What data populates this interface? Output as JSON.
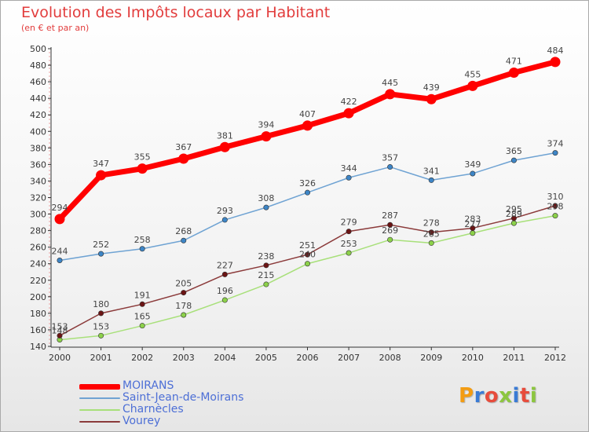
{
  "header": {
    "title": "Evolution des Impôts locaux par Habitant",
    "subtitle": "(en € et par an)"
  },
  "logo": {
    "text": "Proxiti",
    "letter_colors": [
      "#f39c12",
      "#3a7bd5",
      "#e74c3c",
      "#8cc63f",
      "#3a7bd5",
      "#e74c3c",
      "#8cc63f"
    ]
  },
  "chart_data": {
    "type": "line",
    "title": "Evolution des Impôts locaux par Habitant",
    "subtitle": "(en € et par an)",
    "xlabel": "",
    "ylabel": "",
    "categories": [
      "2000",
      "2001",
      "2002",
      "2003",
      "2004",
      "2005",
      "2006",
      "2007",
      "2008",
      "2009",
      "2010",
      "2011",
      "2012"
    ],
    "ylim": [
      140,
      500
    ],
    "y_ticks": [
      140,
      160,
      180,
      200,
      220,
      240,
      260,
      280,
      300,
      320,
      340,
      360,
      380,
      400,
      420,
      440,
      460,
      480,
      500
    ],
    "grid": false,
    "legend_position": "bottom-left",
    "series": [
      {
        "name": "MOIRANS",
        "color": "#ff0000",
        "emphasis": "thick",
        "values": [
          294,
          347,
          355,
          367,
          381,
          394,
          407,
          422,
          445,
          439,
          455,
          471,
          484
        ]
      },
      {
        "name": "Saint-Jean-de-Moirans",
        "color": "#6fa3d3",
        "marker_color": "#3d85c6",
        "values": [
          244,
          252,
          258,
          268,
          293,
          308,
          326,
          344,
          357,
          341,
          349,
          365,
          374
        ]
      },
      {
        "name": "Charnècles",
        "color": "#a8e07a",
        "marker_color": "#8cd14a",
        "values": [
          148,
          153,
          165,
          178,
          196,
          215,
          240,
          253,
          269,
          265,
          277,
          289,
          298
        ]
      },
      {
        "name": "Vourey",
        "color": "#8b3a3a",
        "marker_color": "#6b1414",
        "values": [
          153,
          180,
          191,
          205,
          227,
          238,
          251,
          279,
          287,
          278,
          283,
          295,
          310
        ]
      }
    ]
  }
}
